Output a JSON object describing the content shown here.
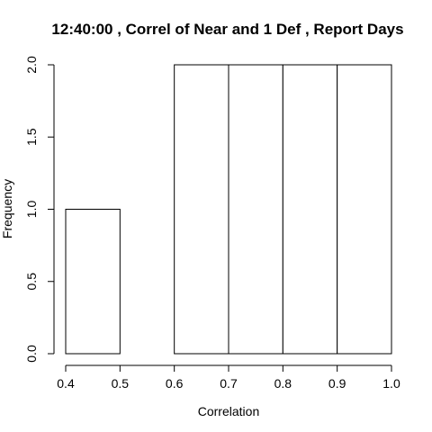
{
  "chart_data": {
    "type": "bar",
    "title": "12:40:00 , Correl of Near and 1 Def , Report Days",
    "xlabel": "Correlation",
    "ylabel": "Frequency",
    "bins": [
      {
        "from": 0.4,
        "to": 0.5,
        "count": 1
      },
      {
        "from": 0.5,
        "to": 0.6,
        "count": 0
      },
      {
        "from": 0.6,
        "to": 0.7,
        "count": 2
      },
      {
        "from": 0.7,
        "to": 0.8,
        "count": 2
      },
      {
        "from": 0.8,
        "to": 0.9,
        "count": 2
      },
      {
        "from": 0.9,
        "to": 1.0,
        "count": 2
      }
    ],
    "xlim": [
      0.4,
      1.0
    ],
    "ylim": [
      0,
      2
    ],
    "xticks": [
      "0.4",
      "0.5",
      "0.6",
      "0.7",
      "0.8",
      "0.9",
      "1.0"
    ],
    "yticks": [
      "0.0",
      "0.5",
      "1.0",
      "1.5",
      "2.0"
    ],
    "grid": false,
    "legend": "none"
  }
}
